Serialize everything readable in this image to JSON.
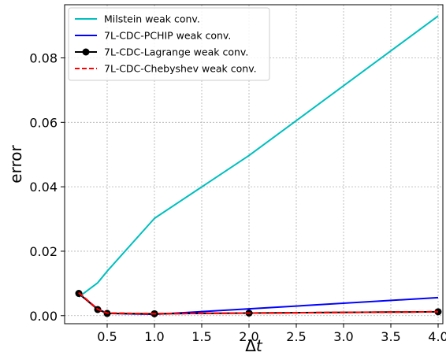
{
  "chart_data": {
    "type": "line",
    "xlabel": "Δ",
    "xlabel_italic": "t",
    "ylabel": "error",
    "xlim": [
      0.05,
      4.05
    ],
    "ylim": [
      -0.0025,
      0.0965
    ],
    "xticks": [
      0.5,
      1.0,
      1.5,
      2.0,
      2.5,
      3.0,
      3.5,
      4.0
    ],
    "xtick_labels": [
      "0.5",
      "1.0",
      "1.5",
      "2.0",
      "2.5",
      "3.0",
      "3.5",
      "4.0"
    ],
    "yticks": [
      0.0,
      0.02,
      0.04,
      0.06,
      0.08
    ],
    "ytick_labels": [
      "0.00",
      "0.02",
      "0.04",
      "0.06",
      "0.08"
    ],
    "grid": true,
    "legend_position": "top-left",
    "series": [
      {
        "name": "Milstein weak conv.",
        "color": "#00bfbf",
        "style": "solid",
        "marker": "none",
        "x": [
          0.2,
          0.4,
          0.5,
          1.0,
          2.0,
          4.0
        ],
        "y": [
          0.0058,
          0.0102,
          0.0138,
          0.0302,
          0.0497,
          0.093
        ]
      },
      {
        "name": "7L-CDC-PCHIP weak conv.",
        "color": "#0000ff",
        "style": "solid",
        "marker": "none",
        "x": [
          0.2,
          0.4,
          0.5,
          1.0,
          2.0,
          4.0
        ],
        "y": [
          0.0068,
          0.0021,
          0.0007,
          0.0004,
          0.0021,
          0.0056
        ]
      },
      {
        "name": "7L-CDC-Lagrange weak conv.",
        "color": "#000000",
        "style": "solid",
        "marker": "circle",
        "x": [
          0.2,
          0.4,
          0.5,
          1.0,
          2.0,
          4.0
        ],
        "y": [
          0.0069,
          0.0019,
          0.0007,
          0.0006,
          0.0008,
          0.0012
        ]
      },
      {
        "name": "7L-CDC-Chebyshev weak conv.",
        "color": "#ff0000",
        "style": "dashed",
        "marker": "none",
        "x": [
          0.2,
          0.4,
          0.5,
          1.0,
          2.0,
          4.0
        ],
        "y": [
          0.0071,
          0.002,
          0.0008,
          0.0006,
          0.0008,
          0.0012
        ]
      }
    ]
  }
}
